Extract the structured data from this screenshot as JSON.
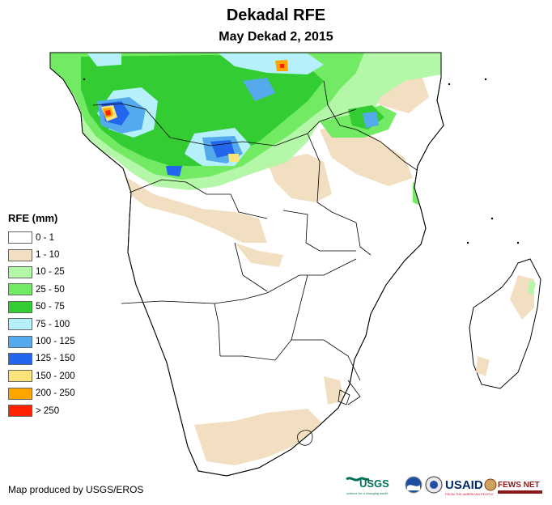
{
  "title": "Dekadal RFE",
  "subtitle": "May Dekad 2, 2015",
  "legend": {
    "title": "RFE (mm)",
    "items": [
      {
        "label": "0 - 1",
        "color": "#ffffff"
      },
      {
        "label": "1 - 10",
        "color": "#f2dfc2"
      },
      {
        "label": "10 - 25",
        "color": "#b4f7a8"
      },
      {
        "label": "25 - 50",
        "color": "#73ea64"
      },
      {
        "label": "50 - 75",
        "color": "#33cc33"
      },
      {
        "label": "75 - 100",
        "color": "#b5f0fb"
      },
      {
        "label": "100 - 125",
        "color": "#55aaee"
      },
      {
        "label": "125 - 150",
        "color": "#2266ee"
      },
      {
        "label": "150 - 200",
        "color": "#fde47a"
      },
      {
        "label": "200 - 250",
        "color": "#ffa500"
      },
      {
        "label": "> 250",
        "color": "#ff2200"
      }
    ]
  },
  "credit": "Map produced by USGS/EROS",
  "logos": {
    "usgs": "USGS",
    "usgs_tagline": "science for a changing world",
    "usaid": "USAID",
    "usaid_tagline": "FROM THE AMERICAN PEOPLE",
    "fewsnet": "FEWS NET"
  }
}
